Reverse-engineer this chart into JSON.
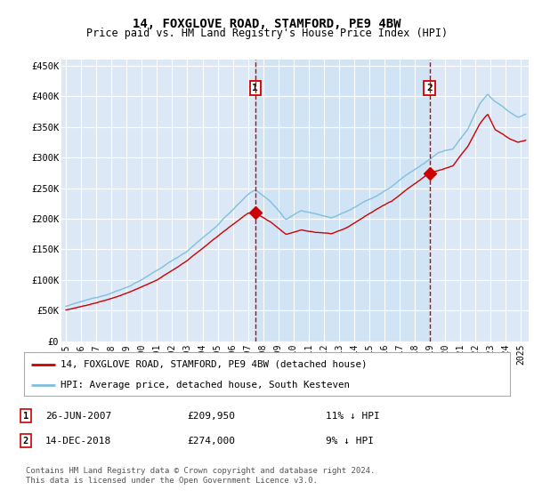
{
  "title": "14, FOXGLOVE ROAD, STAMFORD, PE9 4BW",
  "subtitle": "Price paid vs. HM Land Registry's House Price Index (HPI)",
  "ylabel_ticks": [
    "£0",
    "£50K",
    "£100K",
    "£150K",
    "£200K",
    "£250K",
    "£300K",
    "£350K",
    "£400K",
    "£450K"
  ],
  "ytick_values": [
    0,
    50000,
    100000,
    150000,
    200000,
    250000,
    300000,
    350000,
    400000,
    450000
  ],
  "ylim": [
    0,
    460000
  ],
  "xlim_start": 1994.7,
  "xlim_end": 2025.5,
  "background_color": "#dce8f5",
  "grid_color": "#ffffff",
  "hpi_color": "#7fbfdf",
  "price_color": "#cc0000",
  "shade_color": "#d0e4f5",
  "marker1_x": 2007.48,
  "marker1_y": 209950,
  "marker2_x": 2018.96,
  "marker2_y": 274000,
  "marker1_label": "1",
  "marker1_date": "26-JUN-2007",
  "marker1_price": "£209,950",
  "marker1_hpi": "11% ↓ HPI",
  "marker2_label": "2",
  "marker2_date": "14-DEC-2018",
  "marker2_price": "£274,000",
  "marker2_hpi": "9% ↓ HPI",
  "legend_line1": "14, FOXGLOVE ROAD, STAMFORD, PE9 4BW (detached house)",
  "legend_line2": "HPI: Average price, detached house, South Kesteven",
  "footer": "Contains HM Land Registry data © Crown copyright and database right 2024.\nThis data is licensed under the Open Government Licence v3.0."
}
